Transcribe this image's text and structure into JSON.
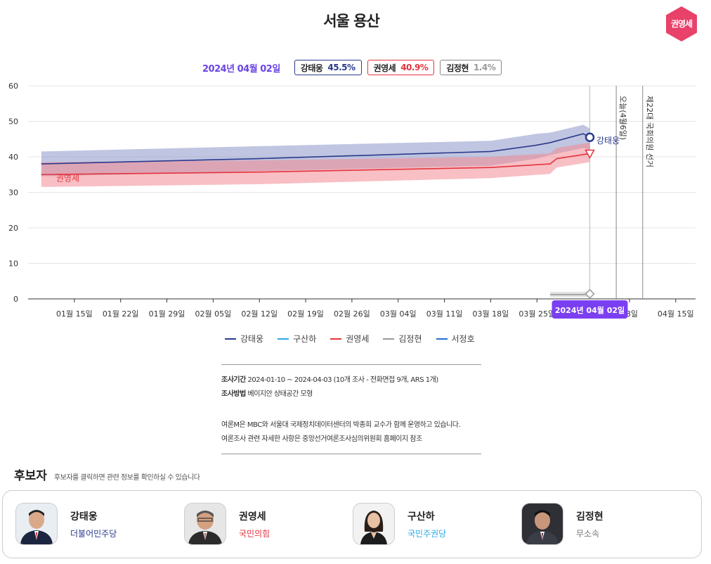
{
  "page": {
    "title": "서울 용산",
    "badge": "권영세"
  },
  "top_legend": {
    "date": "2024년 04월 02일",
    "items": [
      {
        "name": "강태웅",
        "pct": "45.5%",
        "color": "#2b3a8c"
      },
      {
        "name": "권영세",
        "pct": "40.9%",
        "color": "#e3343f"
      },
      {
        "name": "김정현",
        "pct": "1.4%",
        "color": "#999999"
      }
    ]
  },
  "chart_data": {
    "type": "line",
    "ylim": [
      0,
      60
    ],
    "yticks": [
      0,
      10,
      20,
      30,
      40,
      50,
      60
    ],
    "x_domain": [
      "2024-01-08",
      "2024-04-18"
    ],
    "x_ticks": [
      {
        "date": "2024-01-15",
        "label": "01월 15일"
      },
      {
        "date": "2024-01-22",
        "label": "01월 22일"
      },
      {
        "date": "2024-01-29",
        "label": "01월 29일"
      },
      {
        "date": "2024-02-05",
        "label": "02월 05일"
      },
      {
        "date": "2024-02-12",
        "label": "02월 12일"
      },
      {
        "date": "2024-02-19",
        "label": "02월 19일"
      },
      {
        "date": "2024-02-26",
        "label": "02월 26일"
      },
      {
        "date": "2024-03-04",
        "label": "03월 04일"
      },
      {
        "date": "2024-03-11",
        "label": "03월 11일"
      },
      {
        "date": "2024-03-18",
        "label": "03월 18일"
      },
      {
        "date": "2024-03-25",
        "label": "03월 25일"
      },
      {
        "date": "2024-04-08",
        "label": "08일"
      },
      {
        "date": "2024-04-15",
        "label": "04월 15일"
      }
    ],
    "series": [
      {
        "name": "강태웅",
        "color": "#2b3a8c",
        "band_color": "#8c96c8",
        "marker": "circle",
        "points": [
          {
            "date": "2024-01-10",
            "y": 38.0,
            "lo": 34.5,
            "hi": 41.5
          },
          {
            "date": "2024-02-12",
            "y": 39.5,
            "lo": 36.0,
            "hi": 43.0
          },
          {
            "date": "2024-03-18",
            "y": 41.5,
            "lo": 37.5,
            "hi": 44.5
          },
          {
            "date": "2024-03-25",
            "y": 43.3,
            "lo": 39.5,
            "hi": 46.5
          },
          {
            "date": "2024-03-27",
            "y": 44.0,
            "lo": 40.5,
            "hi": 46.8
          },
          {
            "date": "2024-04-01",
            "y": 46.5,
            "lo": 42.5,
            "hi": 49.0
          },
          {
            "date": "2024-04-02",
            "y": 45.5,
            "lo": 42.0,
            "hi": 48.0
          }
        ]
      },
      {
        "name": "권영세",
        "color": "#e3343f",
        "band_color": "#f28a93",
        "marker": "triangle",
        "points": [
          {
            "date": "2024-01-10",
            "y": 35.0,
            "lo": 31.5,
            "hi": 38.5
          },
          {
            "date": "2024-02-12",
            "y": 35.7,
            "lo": 32.3,
            "hi": 39.0
          },
          {
            "date": "2024-03-18",
            "y": 37.0,
            "lo": 34.0,
            "hi": 40.0
          },
          {
            "date": "2024-03-27",
            "y": 38.0,
            "lo": 35.2,
            "hi": 41.0
          },
          {
            "date": "2024-03-28",
            "y": 39.5,
            "lo": 37.0,
            "hi": 42.5
          },
          {
            "date": "2024-04-02",
            "y": 40.9,
            "lo": 38.5,
            "hi": 44.0
          }
        ]
      },
      {
        "name": "김정현",
        "color": "#999999",
        "band_color": "#cccccc",
        "marker": "diamond",
        "points": [
          {
            "date": "2024-03-27",
            "y": 1.2,
            "lo": 0.5,
            "hi": 2.0
          },
          {
            "date": "2024-04-01",
            "y": 1.2,
            "lo": 0.5,
            "hi": 2.0
          },
          {
            "date": "2024-04-02",
            "y": 1.4,
            "lo": 0.6,
            "hi": 2.2
          }
        ]
      }
    ],
    "line_labels": [
      {
        "text": "권영세",
        "series": "권영세",
        "date": "2024-01-14",
        "y": 33.2
      },
      {
        "text": "강태웅",
        "series": "강태웅",
        "date": "2024-04-03",
        "y": 43.8
      }
    ],
    "vlines": [
      {
        "date": "2024-04-02",
        "label": ""
      },
      {
        "date": "2024-04-06",
        "label": "오늘(4월6일)"
      },
      {
        "date": "2024-04-10",
        "label": "제22대 국회의원 선거"
      }
    ],
    "hover_date_label": {
      "date": "2024-04-02",
      "text": "2024년 04월 02일"
    },
    "legend": [
      {
        "name": "강태웅",
        "color": "#2b3a8c"
      },
      {
        "name": "구산하",
        "color": "#2aa9e8"
      },
      {
        "name": "권영세",
        "color": "#e3343f"
      },
      {
        "name": "김정현",
        "color": "#999999"
      },
      {
        "name": "서정호",
        "color": "#1f6fd1"
      }
    ]
  },
  "info": {
    "period_label": "조사기간",
    "period": "2024-01-10 ~ 2024-04-03 (10개 조사 - 전화면접 9개, ARS 1개)",
    "method_label": "조사방법",
    "method": "베이지안 상태공간 모형",
    "note1": "여론M은 MBC와 서울대 국제정치데이터센터의 박종희 교수가 함께 운영하고 있습니다.",
    "note2": "여론조사 관련 자세한 사항은 중앙선거여론조사심의위원회 홈페이지 참조"
  },
  "candidates": {
    "heading": "후보자",
    "hint": "후보자를 클릭하면 관련 정보를 확인하실 수 있습니다",
    "list": [
      {
        "name": "강태웅",
        "party": "더불어민주당",
        "party_color": "#2b3a8c"
      },
      {
        "name": "권영세",
        "party": "국민의힘",
        "party_color": "#e3343f"
      },
      {
        "name": "구산하",
        "party": "국민주권당",
        "party_color": "#2aa9e8"
      },
      {
        "name": "김정현",
        "party": "무소속",
        "party_color": "#777777"
      }
    ]
  }
}
